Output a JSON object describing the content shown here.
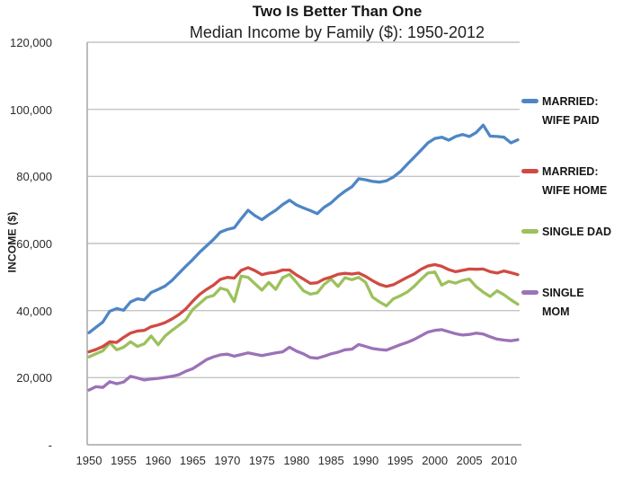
{
  "chart_data": {
    "type": "line",
    "title": "Two Is Better Than One",
    "subtitle": "Median Income by Family ($): 1950-2012",
    "ylabel": "INCOME ($)",
    "xlim": [
      1950,
      2012
    ],
    "ylim": [
      0,
      120000
    ],
    "grid": true,
    "legend_position": "right",
    "x_step": 1,
    "x_ticks": [
      1950,
      1955,
      1960,
      1965,
      1970,
      1975,
      1980,
      1985,
      1990,
      1995,
      2000,
      2005,
      2010
    ],
    "y_ticks": {
      "values": [
        120000,
        100000,
        80000,
        60000,
        40000,
        20000,
        0
      ],
      "labels": [
        "120,000",
        "100,000",
        "80,000",
        "60,000",
        "40,000",
        "20,000",
        "-"
      ]
    },
    "series": [
      {
        "name": "MARRIED: WIFE PAID",
        "key": "married-wife-paid",
        "color": "#4E86C5",
        "values": [
          33400,
          35000,
          36600,
          39800,
          40600,
          40100,
          42600,
          43500,
          43200,
          45400,
          46300,
          47300,
          49000,
          51100,
          53200,
          55200,
          57400,
          59300,
          61200,
          63400,
          64200,
          64700,
          67400,
          69900,
          68300,
          67100,
          68600,
          69900,
          71600,
          72900,
          71500,
          70600,
          69800,
          68900,
          70800,
          72100,
          74000,
          75600,
          76900,
          79300,
          79000,
          78500,
          78300,
          78700,
          79800,
          81400,
          83600,
          85700,
          87800,
          90000,
          91300,
          91700,
          90800,
          91900,
          92500,
          91900,
          93100,
          95300,
          92000,
          91900,
          91700,
          90000,
          90900
        ]
      },
      {
        "name": "SINGLE DAD",
        "key": "single-dad",
        "color": "#9CC15C",
        "values": [
          26200,
          27100,
          28000,
          30400,
          28300,
          29100,
          30700,
          29300,
          30100,
          32400,
          29800,
          32400,
          34100,
          35600,
          37200,
          40300,
          42100,
          43900,
          44500,
          46700,
          46100,
          42700,
          50300,
          49900,
          48000,
          46100,
          48400,
          46300,
          49800,
          50800,
          48400,
          45900,
          44900,
          45300,
          47800,
          49400,
          47200,
          49800,
          49200,
          49900,
          48400,
          44000,
          42600,
          41400,
          43500,
          44400,
          45500,
          47200,
          49300,
          51200,
          51500,
          47600,
          48700,
          48200,
          49000,
          49400,
          47100,
          45500,
          44200,
          45900,
          44700,
          43200,
          41900
        ]
      },
      {
        "name": "MARRIED: WIFE HOME",
        "key": "married-wife-home",
        "color": "#D04B42",
        "values": [
          27700,
          28400,
          29300,
          30700,
          30500,
          32000,
          33300,
          33900,
          34100,
          35200,
          35700,
          36400,
          37500,
          38800,
          40500,
          42800,
          44800,
          46300,
          47600,
          49300,
          49900,
          49700,
          52000,
          52800,
          51900,
          50700,
          51200,
          51400,
          52100,
          52100,
          50600,
          49400,
          48100,
          48300,
          49400,
          50000,
          50800,
          51100,
          50900,
          51200,
          50200,
          48900,
          47800,
          47200,
          47700,
          48800,
          49900,
          50900,
          52300,
          53300,
          53700,
          53200,
          52200,
          51600,
          52000,
          52400,
          52300,
          52400,
          51600,
          51200,
          51800,
          51300,
          50700
        ]
      },
      {
        "name": "SINGLE MOM",
        "key": "single-mom",
        "color": "#9C72B7",
        "values": [
          16300,
          17300,
          17100,
          18800,
          18200,
          18700,
          20400,
          19900,
          19300,
          19600,
          19800,
          20100,
          20400,
          20900,
          21900,
          22700,
          24000,
          25400,
          26200,
          26800,
          27000,
          26400,
          26900,
          27400,
          27000,
          26600,
          27000,
          27400,
          27700,
          29100,
          27900,
          27100,
          26000,
          25800,
          26400,
          27100,
          27600,
          28300,
          28500,
          29900,
          29300,
          28700,
          28400,
          28200,
          29000,
          29800,
          30500,
          31400,
          32500,
          33600,
          34100,
          34300,
          33700,
          33100,
          32700,
          32900,
          33300,
          33000,
          32200,
          31500,
          31200,
          31000,
          31300
        ]
      }
    ]
  },
  "legend": [
    {
      "label": "MARRIED:\nWIFE PAID",
      "color": "#4E86C5"
    },
    {
      "label": "MARRIED:\nWIFE HOME",
      "color": "#D04B42"
    },
    {
      "label": "SINGLE DAD",
      "color": "#9CC15C"
    },
    {
      "label": "SINGLE\nMOM",
      "color": "#9C72B7"
    }
  ],
  "style": {
    "gridline_color": "#C4C4C4",
    "axis_color": "#A6A6A6"
  }
}
